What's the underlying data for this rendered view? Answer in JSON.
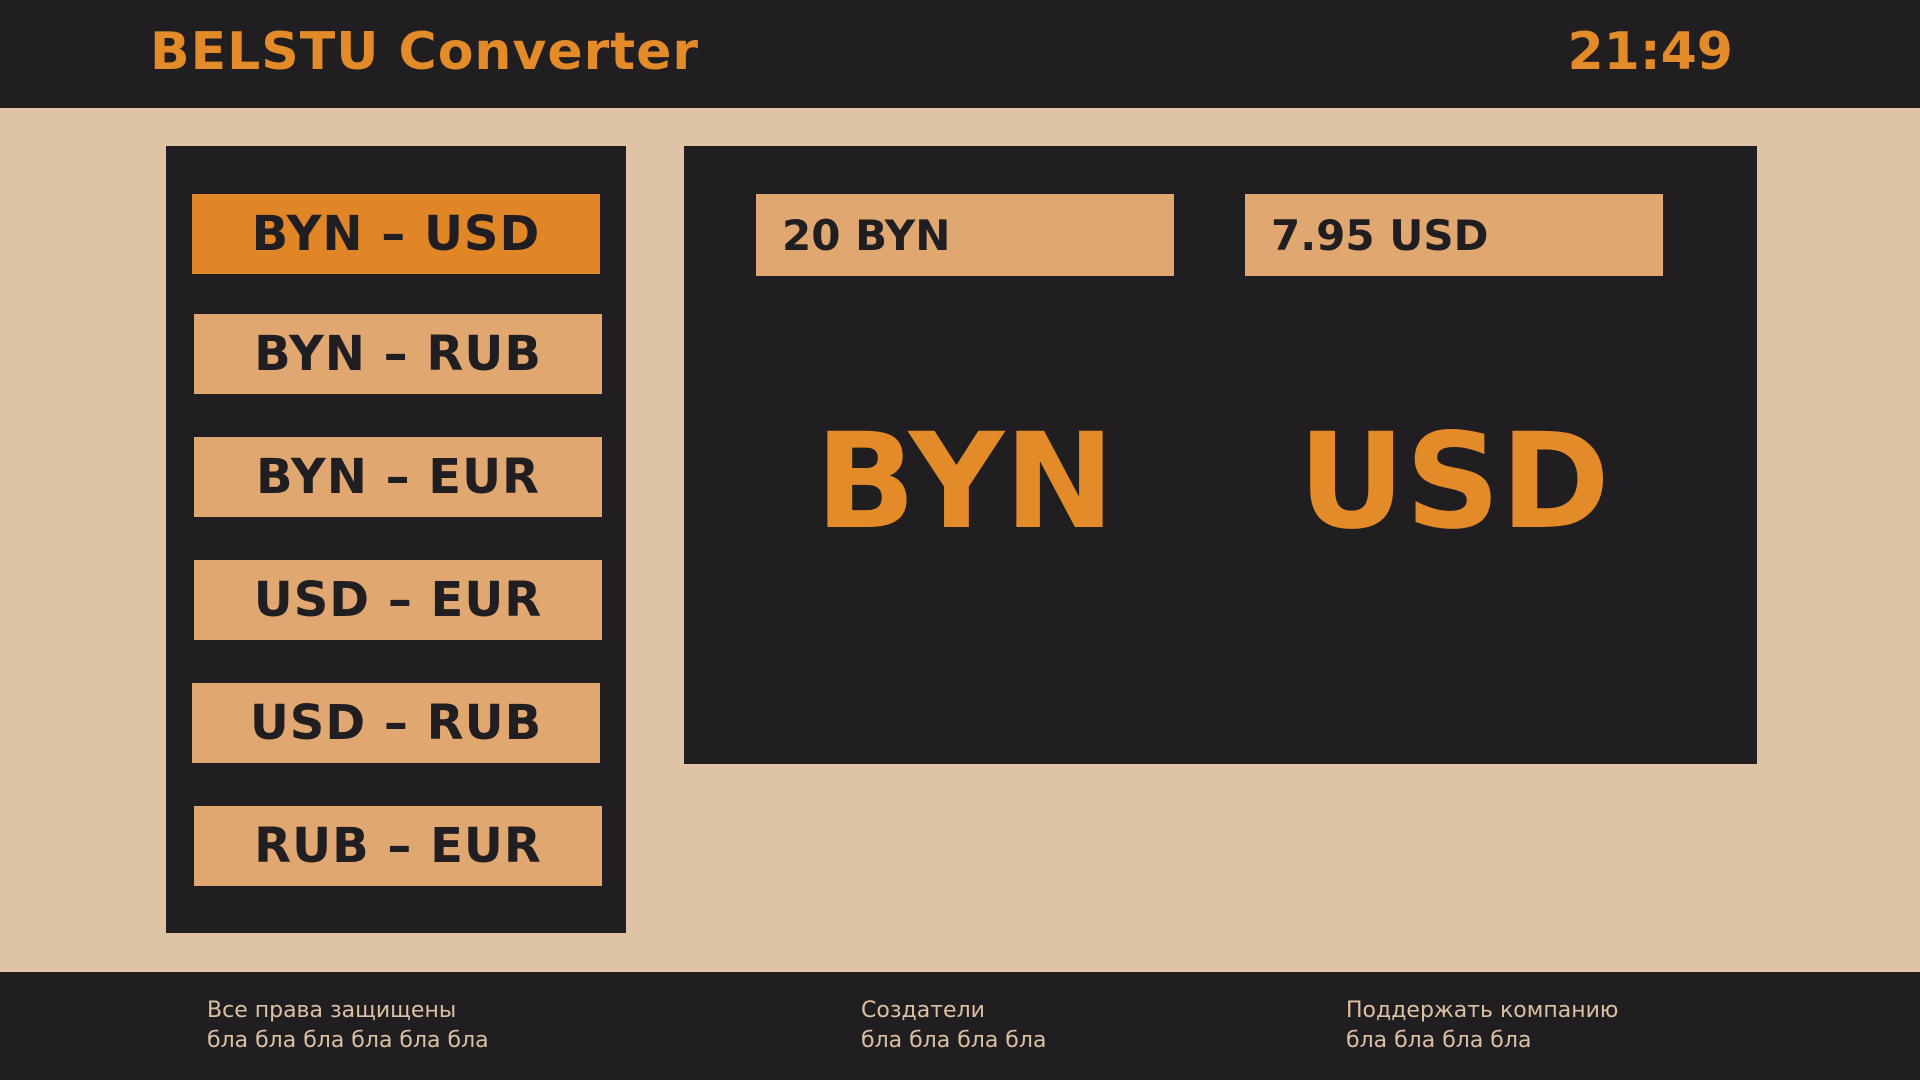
{
  "header": {
    "title": "BELSTU Converter",
    "time": "21:49"
  },
  "sidebar": {
    "pairs": [
      {
        "label": "BYN – USD",
        "active": true
      },
      {
        "label": "BYN – RUB",
        "active": false
      },
      {
        "label": "BYN – EUR",
        "active": false
      },
      {
        "label": "USD – EUR",
        "active": false
      },
      {
        "label": "USD – RUB",
        "active": false
      },
      {
        "label": "RUB – EUR",
        "active": false
      }
    ]
  },
  "converter": {
    "from_amount": "20 BYN",
    "to_amount": "7.95 USD",
    "from_currency": "BYN",
    "to_currency": "USD"
  },
  "footer": {
    "rights": {
      "title": "Все права защищены",
      "text": "бла бла бла бла бла бла"
    },
    "creators": {
      "title": "Создатели",
      "text": "бла бла бла бла"
    },
    "support": {
      "title": "Поддержать компанию",
      "text": "бла бла бла бла"
    }
  },
  "colors": {
    "accent": "#e38a29",
    "dark": "#211e22",
    "button": "#e0a870",
    "background": "#dfc3a5"
  }
}
